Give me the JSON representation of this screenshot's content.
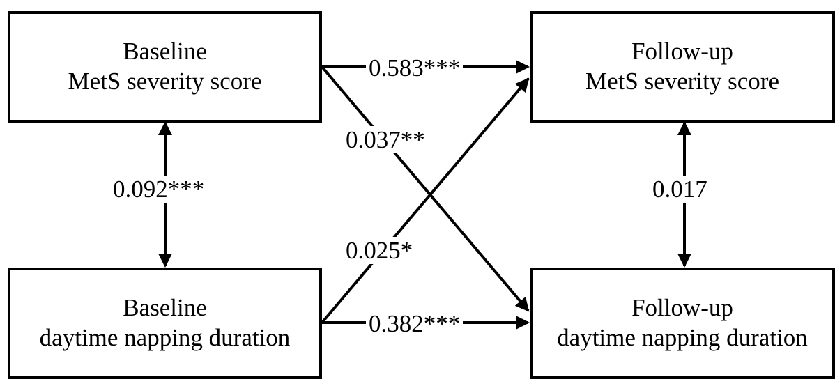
{
  "nodes": {
    "baseline_mets": {
      "line1": "Baseline",
      "line2": "MetS severity score"
    },
    "baseline_nap": {
      "line1": "Baseline",
      "line2": "daytime napping duration"
    },
    "followup_mets": {
      "line1": "Follow-up",
      "line2": "MetS severity score"
    },
    "followup_nap": {
      "line1": "Follow-up",
      "line2": "daytime napping duration"
    }
  },
  "paths": {
    "mets_to_mets": "0.583***",
    "nap_to_nap": "0.382***",
    "mets_to_nap": "0.037**",
    "nap_to_mets": "0.025*",
    "baseline_corr": "0.092***",
    "followup_corr": "0.017"
  }
}
